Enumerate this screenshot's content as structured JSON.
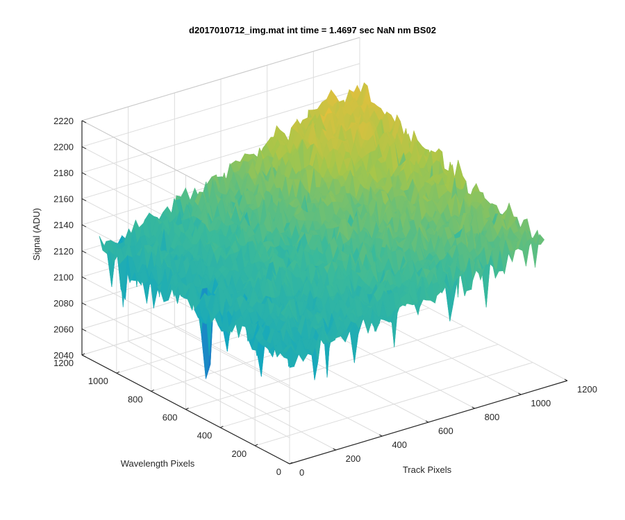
{
  "chart_data": {
    "type": "surface",
    "title": "d2017010712_img.mat int time = 1.4697 sec  NaN nm BS02",
    "xlabel": "Track Pixels",
    "ylabel": "Wavelength Pixels",
    "zlabel": "Signal (ADU)",
    "xlim": [
      0,
      1200
    ],
    "ylim": [
      0,
      1200
    ],
    "zlim": [
      2040,
      2220
    ],
    "x_ticks": [
      "0",
      "200",
      "400",
      "600",
      "800",
      "1000",
      "1200"
    ],
    "y_ticks": [
      "0",
      "200",
      "400",
      "600",
      "800",
      "1000",
      "1200"
    ],
    "z_ticks": [
      "2040",
      "2060",
      "2080",
      "2100",
      "2120",
      "2140",
      "2160",
      "2180",
      "2200",
      "2220"
    ],
    "grid": true,
    "colormap": "parula",
    "surface_extent": {
      "track_pixels": [
        0,
        1100
      ],
      "wavelength_pixels": [
        0,
        1100
      ]
    },
    "signal_summary": {
      "corner_track0_wave0": 2120,
      "corner_track1100_wave0": 2150,
      "corner_track0_wave1100": 2125,
      "corner_track1100_wave1100": 2190,
      "peak": 2205,
      "min_spike": 2060,
      "noise_amplitude": 25
    },
    "colors": {
      "low": "#1F78C8",
      "mid_low": "#12A6C0",
      "mid": "#3BBA9A",
      "mid_high": "#A6C64A",
      "high": "#F0BE3A"
    }
  }
}
